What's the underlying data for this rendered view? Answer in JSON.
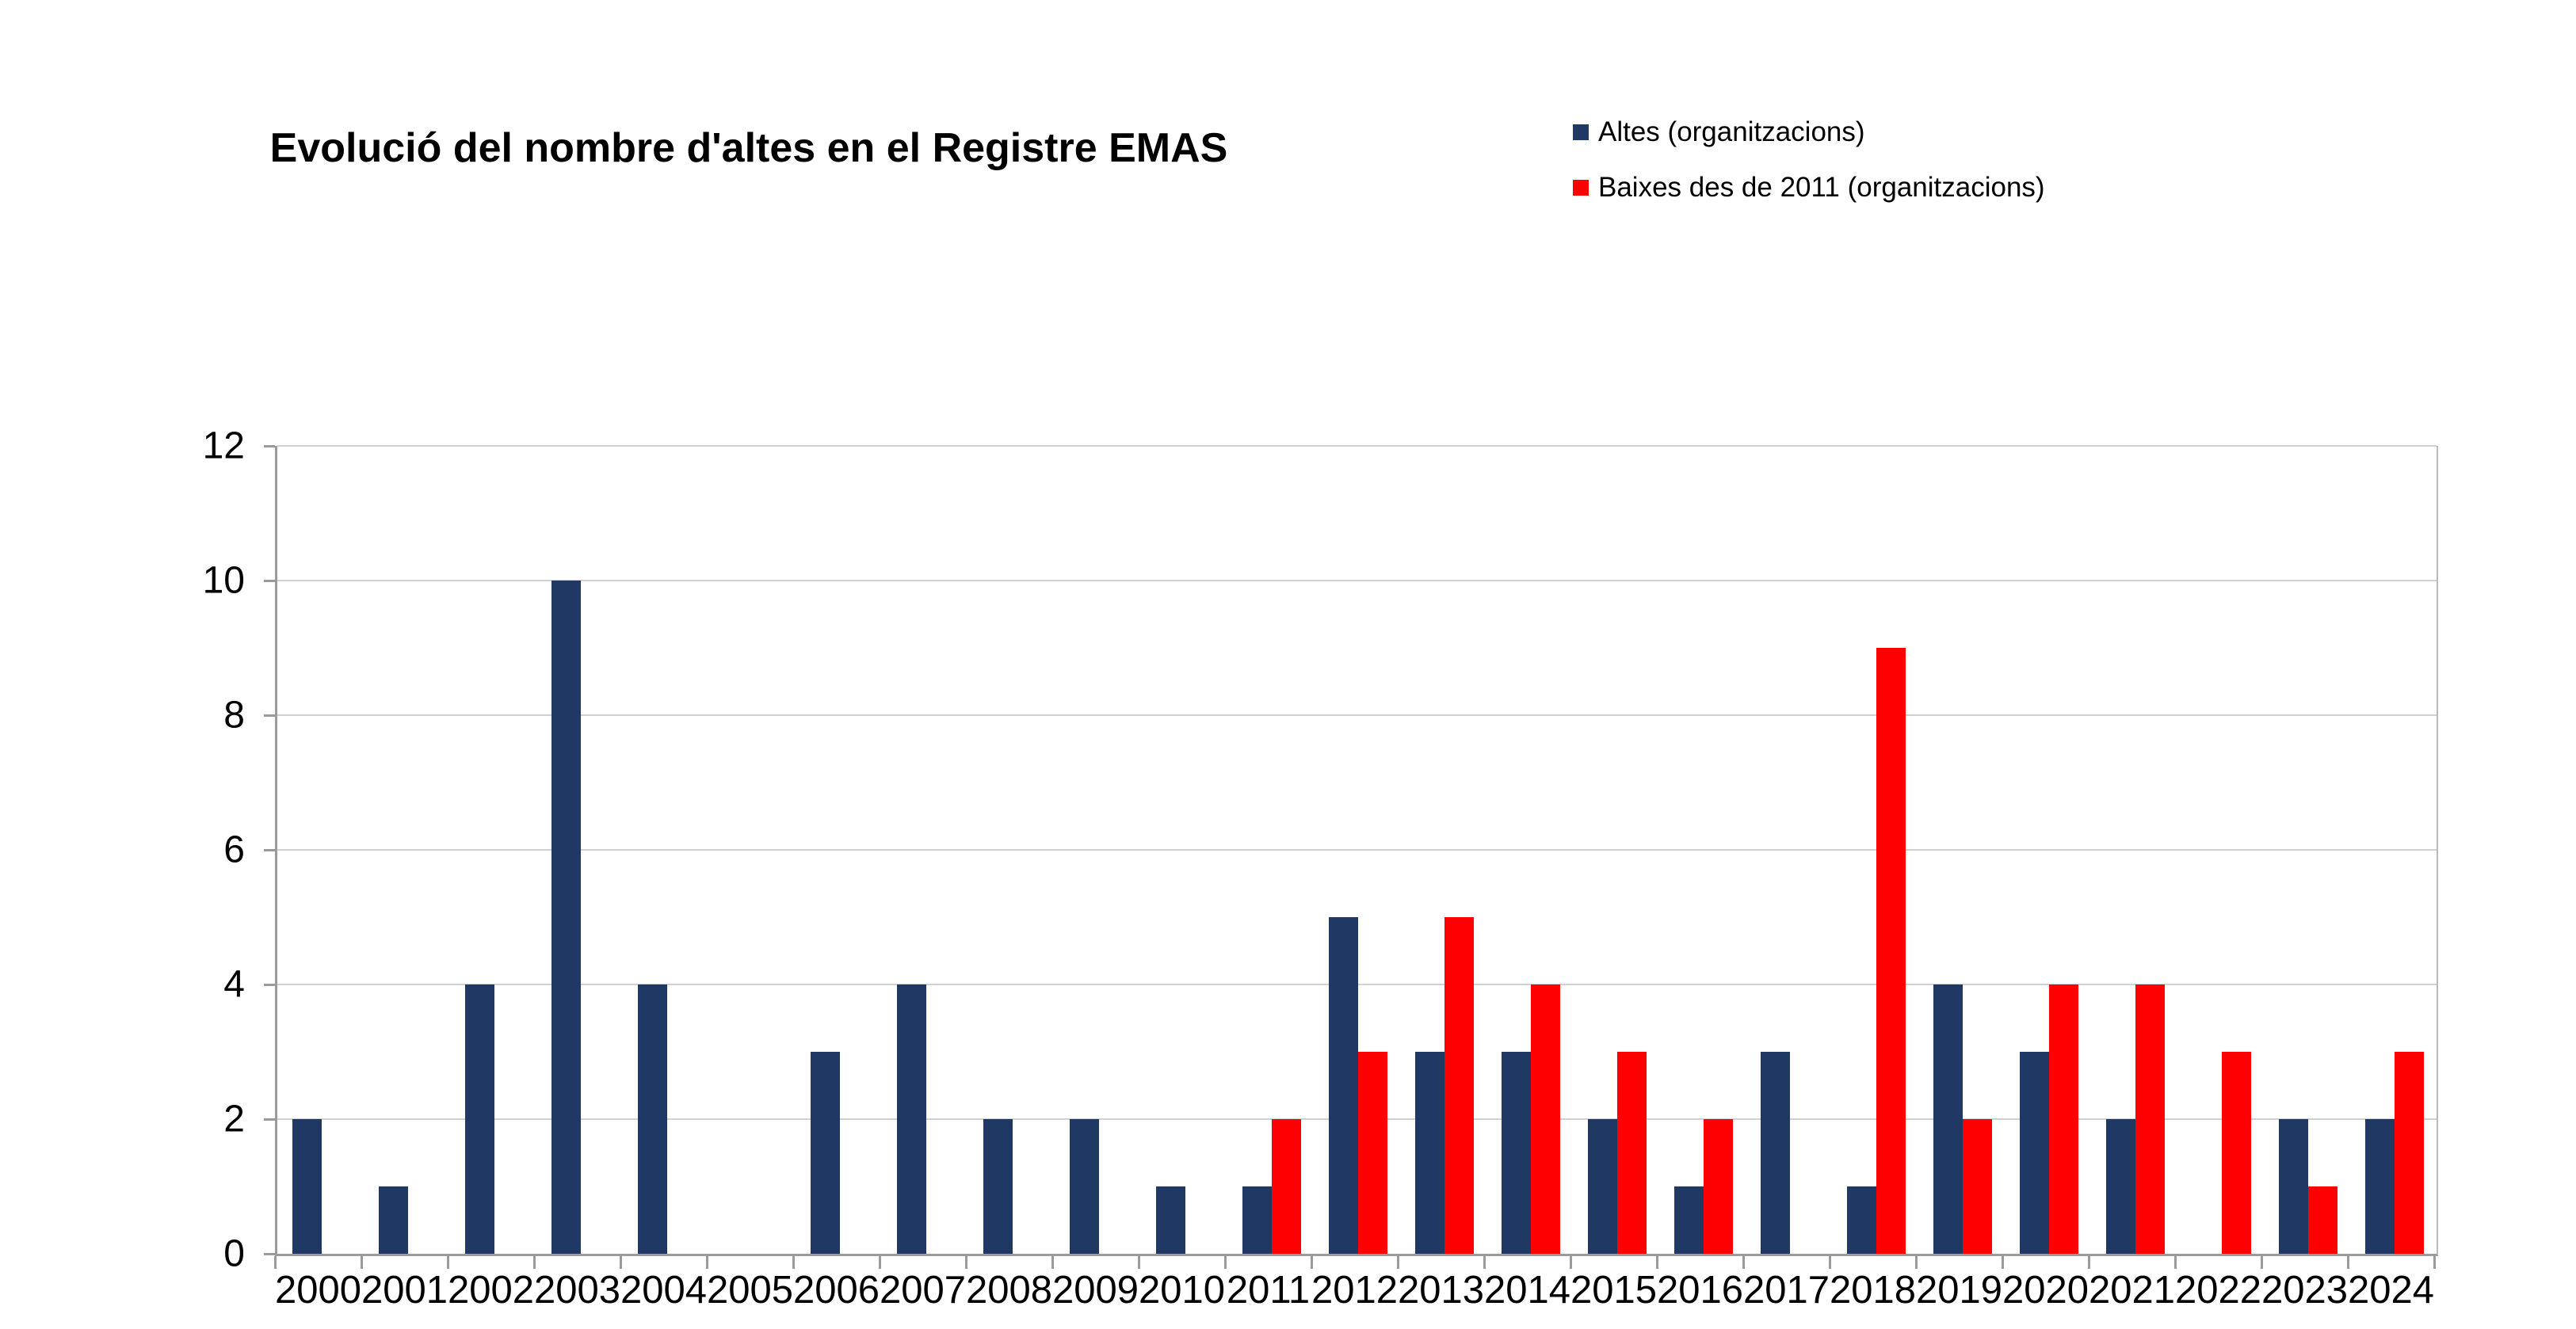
{
  "title": "Evolució del nombre d'altes en el Registre EMAS",
  "legend": {
    "items": [
      {
        "label": "Altes (organitzacions)",
        "color": "#1F3864"
      },
      {
        "label": "Baixes des de 2011 (organitzacions)",
        "color": "#FF0000"
      }
    ],
    "position": "top-right"
  },
  "chart_data": {
    "type": "bar",
    "title": "Evolució del nombre d'altes en el Registre EMAS",
    "categories": [
      "2000",
      "2001",
      "2002",
      "2003",
      "2004",
      "2005",
      "2006",
      "2007",
      "2008",
      "2009",
      "2010",
      "2011",
      "2012",
      "2013",
      "2014",
      "2015",
      "2016",
      "2017",
      "2018",
      "2019",
      "2020",
      "2021",
      "2022",
      "2023",
      "2024"
    ],
    "series": [
      {
        "name": "Altes (organitzacions)",
        "color": "#1F3864",
        "values": [
          2,
          1,
          4,
          10,
          4,
          0,
          3,
          4,
          2,
          2,
          1,
          1,
          5,
          3,
          3,
          2,
          1,
          3,
          1,
          4,
          3,
          2,
          0,
          2,
          2
        ]
      },
      {
        "name": "Baixes des de 2011 (organitzacions)",
        "color": "#FF0000",
        "values": [
          null,
          null,
          null,
          null,
          null,
          null,
          null,
          null,
          null,
          null,
          null,
          2,
          3,
          5,
          4,
          3,
          2,
          0,
          9,
          2,
          4,
          4,
          3,
          1,
          3
        ]
      }
    ],
    "xlabel": "",
    "ylabel": "",
    "ylim": [
      0,
      12
    ],
    "yticks": [
      0,
      2,
      4,
      6,
      8,
      10,
      12
    ],
    "grid": true,
    "legend_position": "top-right",
    "gridline_color": "#d2d2d2",
    "axis_color": "#9b9b9b",
    "background": "#ffffff"
  }
}
